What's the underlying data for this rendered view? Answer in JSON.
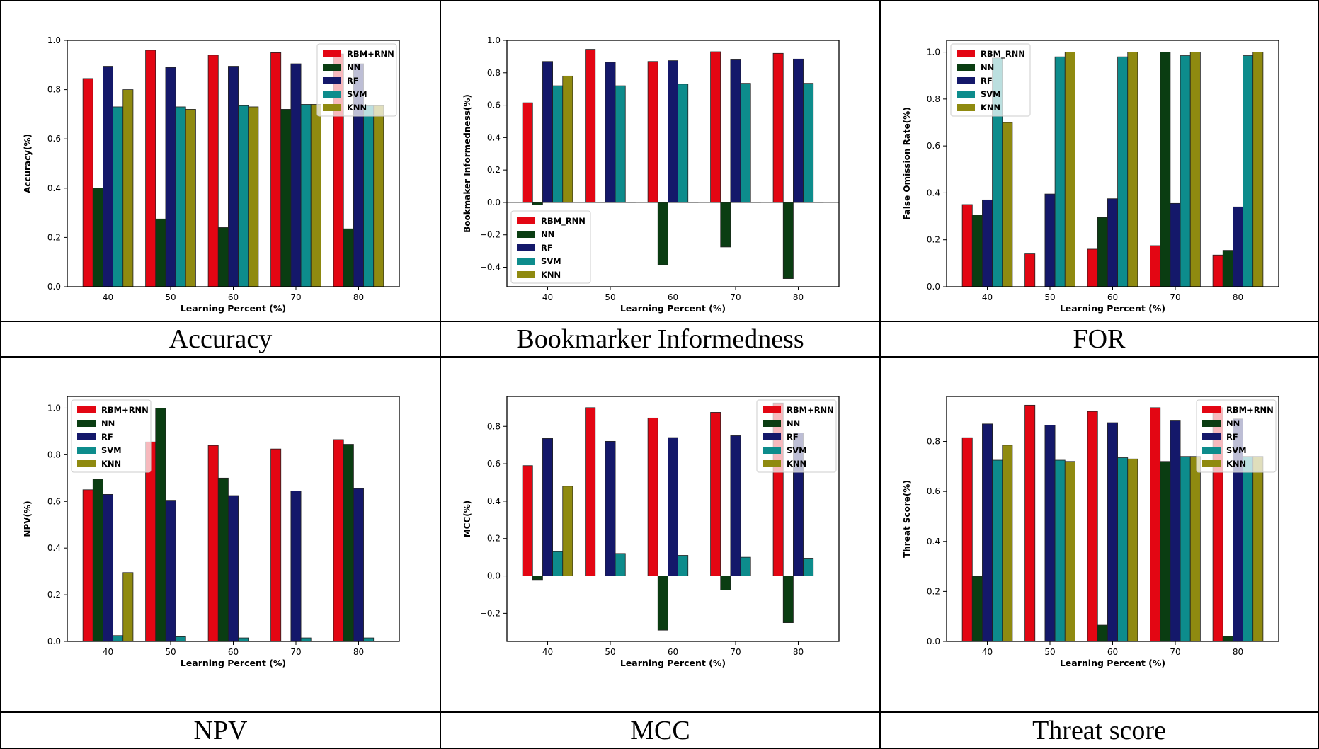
{
  "colors": {
    "RBM+RNN": "#e30613",
    "RBM_RNN": "#e30613",
    "NN": "#0a3d12",
    "RF": "#14186a",
    "SVM": "#0d8c8c",
    "KNN": "#8f8a10"
  },
  "panels": [
    {
      "caption": "Accuracy",
      "chart_data": {
        "type": "bar",
        "categories": [
          "40",
          "50",
          "60",
          "70",
          "80"
        ],
        "xlabel": "Learning Percent (%)",
        "ylabel": "Accuracy(%)",
        "ylim": [
          0,
          1.0
        ],
        "yticks": [
          0.0,
          0.2,
          0.4,
          0.6,
          0.8,
          1.0
        ],
        "yticklabels": [
          "0.0",
          "0.2",
          "0.4",
          "0.6",
          "0.8",
          "1.0"
        ],
        "legend": "top-right",
        "series": [
          {
            "name": "RBM+RNN",
            "values": [
              0.845,
              0.96,
              0.94,
              0.95,
              0.945
            ]
          },
          {
            "name": "NN",
            "values": [
              0.4,
              0.275,
              0.24,
              0.72,
              0.235
            ]
          },
          {
            "name": "RF",
            "values": [
              0.895,
              0.89,
              0.895,
              0.905,
              0.905
            ]
          },
          {
            "name": "SVM",
            "values": [
              0.73,
              0.73,
              0.735,
              0.74,
              0.735
            ]
          },
          {
            "name": "KNN",
            "values": [
              0.8,
              0.72,
              0.73,
              0.74,
              0.735
            ]
          }
        ]
      }
    },
    {
      "caption": "Bookmarker Informedness",
      "chart_data": {
        "type": "bar",
        "categories": [
          "40",
          "50",
          "60",
          "70",
          "80"
        ],
        "xlabel": "Learning Percent (%)",
        "ylabel": "Bookmaker Informedness(%)",
        "ylim": [
          -0.52,
          1.0
        ],
        "yticks": [
          -0.4,
          -0.2,
          0.0,
          0.2,
          0.4,
          0.6,
          0.8,
          1.0
        ],
        "yticklabels": [
          "−0.4",
          "−0.2",
          "0.0",
          "0.2",
          "0.4",
          "0.6",
          "0.8",
          "1.0"
        ],
        "legend": "bottom-left",
        "series": [
          {
            "name": "RBM_RNN",
            "values": [
              0.615,
              0.945,
              0.87,
              0.93,
              0.92
            ]
          },
          {
            "name": "NN",
            "values": [
              -0.015,
              0.0,
              -0.385,
              -0.275,
              -0.47
            ]
          },
          {
            "name": "RF",
            "values": [
              0.87,
              0.865,
              0.875,
              0.88,
              0.885
            ]
          },
          {
            "name": "SVM",
            "values": [
              0.72,
              0.72,
              0.73,
              0.735,
              0.735
            ]
          },
          {
            "name": "KNN",
            "values": [
              0.78,
              0.0,
              0.0,
              0.0,
              0.0
            ]
          }
        ]
      }
    },
    {
      "caption": "FOR",
      "chart_data": {
        "type": "bar",
        "categories": [
          "40",
          "50",
          "60",
          "70",
          "80"
        ],
        "xlabel": "Learning Percent (%)",
        "ylabel": "False Omission Rate(%)",
        "ylim": [
          0,
          1.05
        ],
        "yticks": [
          0.0,
          0.2,
          0.4,
          0.6,
          0.8,
          1.0
        ],
        "yticklabels": [
          "0.0",
          "0.2",
          "0.4",
          "0.6",
          "0.8",
          "1.0"
        ],
        "legend": "top-left",
        "series": [
          {
            "name": "RBM_RNN",
            "values": [
              0.35,
              0.14,
              0.16,
              0.175,
              0.135
            ]
          },
          {
            "name": "NN",
            "values": [
              0.305,
              0.0,
              0.295,
              1.0,
              0.155
            ]
          },
          {
            "name": "RF",
            "values": [
              0.37,
              0.395,
              0.375,
              0.355,
              0.34
            ]
          },
          {
            "name": "SVM",
            "values": [
              0.975,
              0.98,
              0.98,
              0.985,
              0.985
            ]
          },
          {
            "name": "KNN",
            "values": [
              0.7,
              1.0,
              1.0,
              1.0,
              1.0
            ]
          }
        ]
      }
    },
    {
      "caption": "NPV",
      "chart_data": {
        "type": "bar",
        "categories": [
          "40",
          "50",
          "60",
          "70",
          "80"
        ],
        "xlabel": "Learning Percent (%)",
        "ylabel": "NPV(%)",
        "ylim": [
          0,
          1.05
        ],
        "yticks": [
          0.0,
          0.2,
          0.4,
          0.6,
          0.8,
          1.0
        ],
        "yticklabels": [
          "0.0",
          "0.2",
          "0.4",
          "0.6",
          "0.8",
          "1.0"
        ],
        "legend": "top-left",
        "series": [
          {
            "name": "RBM+RNN",
            "values": [
              0.65,
              0.855,
              0.84,
              0.825,
              0.865
            ]
          },
          {
            "name": "NN",
            "values": [
              0.695,
              1.0,
              0.7,
              0.0,
              0.845
            ]
          },
          {
            "name": "RF",
            "values": [
              0.63,
              0.605,
              0.625,
              0.645,
              0.655
            ]
          },
          {
            "name": "SVM",
            "values": [
              0.025,
              0.02,
              0.015,
              0.015,
              0.015
            ]
          },
          {
            "name": "KNN",
            "values": [
              0.295,
              0.0,
              0.0,
              0.0,
              0.0
            ]
          }
        ]
      }
    },
    {
      "caption": "MCC",
      "chart_data": {
        "type": "bar",
        "categories": [
          "40",
          "50",
          "60",
          "70",
          "80"
        ],
        "xlabel": "Learning Percent (%)",
        "ylabel": "MCC(%)",
        "ylim": [
          -0.35,
          0.96
        ],
        "yticks": [
          -0.2,
          0.0,
          0.2,
          0.4,
          0.6,
          0.8
        ],
        "yticklabels": [
          "−0.2",
          "0.0",
          "0.2",
          "0.4",
          "0.6",
          "0.8"
        ],
        "legend": "top-right",
        "series": [
          {
            "name": "RBM+RNN",
            "values": [
              0.59,
              0.9,
              0.845,
              0.875,
              0.925
            ]
          },
          {
            "name": "NN",
            "values": [
              -0.02,
              0.0,
              -0.29,
              -0.075,
              -0.25
            ]
          },
          {
            "name": "RF",
            "values": [
              0.735,
              0.72,
              0.74,
              0.75,
              0.765
            ]
          },
          {
            "name": "SVM",
            "values": [
              0.13,
              0.12,
              0.11,
              0.1,
              0.095
            ]
          },
          {
            "name": "KNN",
            "values": [
              0.48,
              0.0,
              0.0,
              0.0,
              0.0
            ]
          }
        ]
      }
    },
    {
      "caption": "Threat score",
      "chart_data": {
        "type": "bar",
        "categories": [
          "40",
          "50",
          "60",
          "70",
          "80"
        ],
        "xlabel": "Learning Percent (%)",
        "ylabel": "Threat Score(%)",
        "ylim": [
          0,
          0.98
        ],
        "yticks": [
          0.0,
          0.2,
          0.4,
          0.6,
          0.8
        ],
        "yticklabels": [
          "0.0",
          "0.2",
          "0.4",
          "0.6",
          "0.8"
        ],
        "legend": "top-right",
        "series": [
          {
            "name": "RBM+RNN",
            "values": [
              0.815,
              0.945,
              0.92,
              0.935,
              0.935
            ]
          },
          {
            "name": "NN",
            "values": [
              0.26,
              0.0,
              0.065,
              0.72,
              0.02
            ]
          },
          {
            "name": "RF",
            "values": [
              0.87,
              0.865,
              0.875,
              0.885,
              0.89
            ]
          },
          {
            "name": "SVM",
            "values": [
              0.725,
              0.725,
              0.735,
              0.74,
              0.74
            ]
          },
          {
            "name": "KNN",
            "values": [
              0.785,
              0.72,
              0.73,
              0.74,
              0.74
            ]
          }
        ]
      }
    }
  ]
}
